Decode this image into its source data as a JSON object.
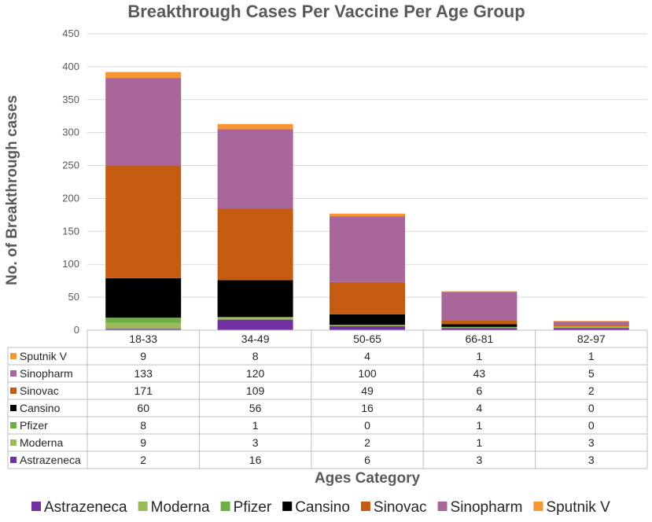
{
  "chart_data": {
    "type": "bar",
    "stacked": true,
    "title": "Breakthrough Cases Per Vaccine Per Age Group",
    "xlabel": "Ages Category",
    "ylabel": "No. of Breakthrough cases",
    "ylim": [
      0,
      450
    ],
    "yticks": [
      0,
      50,
      100,
      150,
      200,
      250,
      300,
      350,
      400,
      450
    ],
    "grid": true,
    "legend_position": "bottom",
    "categories": [
      "18-33",
      "34-49",
      "50-65",
      "66-81",
      "82-97"
    ],
    "series": [
      {
        "name": "Astrazeneca",
        "color": "#7030a0",
        "values": [
          2,
          16,
          6,
          3,
          3
        ]
      },
      {
        "name": "Moderna",
        "color": "#9bbb59",
        "values": [
          9,
          3,
          2,
          1,
          3
        ]
      },
      {
        "name": "Pfizer",
        "color": "#70ad47",
        "values": [
          8,
          1,
          0,
          1,
          0
        ]
      },
      {
        "name": "Cansino",
        "color": "#000000",
        "values": [
          60,
          56,
          16,
          4,
          0
        ]
      },
      {
        "name": "Sinovac",
        "color": "#c55a11",
        "values": [
          171,
          109,
          49,
          6,
          2
        ]
      },
      {
        "name": "Sinopharm",
        "color": "#a9669b",
        "values": [
          133,
          120,
          100,
          43,
          5
        ]
      },
      {
        "name": "Sputnik V",
        "color": "#f79633",
        "values": [
          9,
          8,
          4,
          1,
          1
        ]
      }
    ],
    "table_row_order": [
      "Sputnik V",
      "Sinopharm",
      "Sinovac",
      "Cansino",
      "Pfizer",
      "Moderna",
      "Astrazeneca"
    ]
  }
}
